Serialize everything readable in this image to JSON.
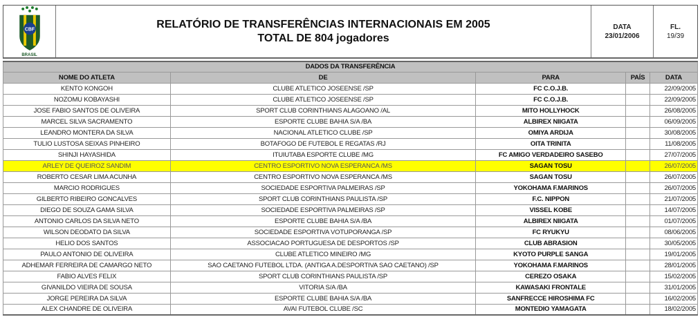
{
  "header": {
    "title": "RELATÓRIO DE TRANSFERÊNCIAS INTERNACIONAIS EM 2005",
    "subtitle": "TOTAL DE 804 jogadores",
    "date_label": "DATA",
    "date": "23/01/2006",
    "page_label": "FL.",
    "page": "19/39",
    "logo_text": "CBF",
    "logo_caption": "BRASIL"
  },
  "table": {
    "group_header": "DADOS DA TRANSFERÊNCIA",
    "columns": [
      "NOME DO ATLETA",
      "DE",
      "PARA",
      "PAÍS",
      "DATA"
    ],
    "highlight_color": "#ffff00",
    "highlighted_row": 7,
    "rows": [
      [
        "KENTO KONGOH",
        "CLUBE ATLETICO JOSEENSE /SP",
        "FC C.O.J.B.",
        "",
        "22/09/2005"
      ],
      [
        "NOZOMU KOBAYASHI",
        "CLUBE ATLETICO JOSEENSE /SP",
        "FC C.O.J.B.",
        "",
        "22/09/2005"
      ],
      [
        "JOSE FABIO SANTOS DE OLIVEIRA",
        "SPORT CLUB CORINTHIANS ALAGOANO /AL",
        "MITO HOLLYHOCK",
        "",
        "26/08/2005"
      ],
      [
        "MARCEL SILVA SACRAMENTO",
        "ESPORTE CLUBE BAHIA S/A /BA",
        "ALBIREX NIIGATA",
        "",
        "06/09/2005"
      ],
      [
        "LEANDRO MONTERA DA SILVA",
        "NACIONAL ATLETICO CLUBE /SP",
        "OMIYA ARDIJA",
        "",
        "30/08/2005"
      ],
      [
        "TULIO LUSTOSA SEIXAS PINHEIRO",
        "BOTAFOGO DE FUTEBOL E REGATAS /RJ",
        "OITA TRINITA",
        "",
        "11/08/2005"
      ],
      [
        "SHINJI HAYASHIDA",
        "ITUIUTABA ESPORTE CLUBE /MG",
        "FC AMIGO VERDADEIRO SASEBO",
        "",
        "27/07/2005"
      ],
      [
        "ARLEY DE QUEIROZ SANDIM",
        "CENTRO ESPORTIVO NOVA ESPERANCA /MS",
        "SAGAN TOSU",
        "",
        "26/07/2005"
      ],
      [
        "ROBERTO CESAR LIMA ACUNHA",
        "CENTRO ESPORTIVO NOVA ESPERANCA /MS",
        "SAGAN TOSU",
        "",
        "26/07/2005"
      ],
      [
        "MARCIO RODRIGUES",
        "SOCIEDADE ESPORTIVA PALMEIRAS /SP",
        "YOKOHAMA F.MARINOS",
        "",
        "26/07/2005"
      ],
      [
        "GILBERTO RIBEIRO GONCALVES",
        "SPORT CLUB CORINTHIANS PAULISTA /SP",
        "F.C. NIPPON",
        "",
        "21/07/2005"
      ],
      [
        "DIEGO DE SOUZA GAMA SILVA",
        "SOCIEDADE ESPORTIVA PALMEIRAS /SP",
        "VISSEL KOBE",
        "",
        "14/07/2005"
      ],
      [
        "ANTONIO CARLOS DA SILVA NETO",
        "ESPORTE CLUBE BAHIA S/A /BA",
        "ALBIREX NIIGATA",
        "",
        "01/07/2005"
      ],
      [
        "WILSON DEODATO DA SILVA",
        "SOCIEDADE ESPORTIVA VOTUPORANGA /SP",
        "FC RYUKYU",
        "",
        "08/06/2005"
      ],
      [
        "HELIO DOS SANTOS",
        "ASSOCIACAO PORTUGUESA DE DESPORTOS /SP",
        "CLUB ABRASION",
        "",
        "30/05/2005"
      ],
      [
        "PAULO ANTONIO DE OLIVEIRA",
        "CLUBE ATLETICO MINEIRO /MG",
        "KYOTO PURPLE SANGA",
        "",
        "19/01/2005"
      ],
      [
        "ADHEMAR FERREIRA DE CAMARGO NETO",
        "SAO CAETANO FUTEBOL LTDA. (ANTIGA A.DESPORTIVA SAO CAETANO) /SP",
        "YOKOHAMA F.MARINOS",
        "",
        "28/01/2005"
      ],
      [
        "FABIO ALVES FELIX",
        "SPORT CLUB CORINTHIANS PAULISTA /SP",
        "CEREZO OSAKA",
        "",
        "15/02/2005"
      ],
      [
        "GIVANILDO VIEIRA DE SOUSA",
        "VITORIA S/A /BA",
        "KAWASAKI FRONTALE",
        "",
        "31/01/2005"
      ],
      [
        "JORGE PEREIRA DA SILVA",
        "ESPORTE CLUBE BAHIA S/A /BA",
        "SANFRECCE HIROSHIMA FC",
        "",
        "16/02/2005"
      ],
      [
        "ALEX CHANDRE DE OLIVEIRA",
        "AVAI FUTEBOL CLUBE /SC",
        "MONTEDIO YAMAGATA",
        "",
        "18/02/2005"
      ]
    ]
  }
}
